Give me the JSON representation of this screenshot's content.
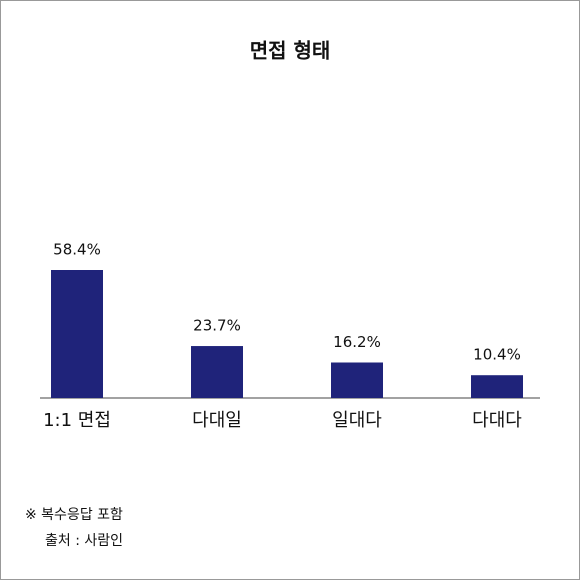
{
  "chart_data": {
    "type": "bar",
    "title": "면접 형태",
    "categories": [
      "1:1 면접",
      "다대일",
      "일대다",
      "다대다"
    ],
    "values": [
      58.4,
      23.7,
      16.2,
      10.4
    ],
    "value_labels": [
      "58.4%",
      "23.7%",
      "16.2%",
      "10.4%"
    ],
    "color": "#1f237a",
    "notes": [
      "※ 복수응답 포함",
      "출처 : 사람인"
    ]
  }
}
